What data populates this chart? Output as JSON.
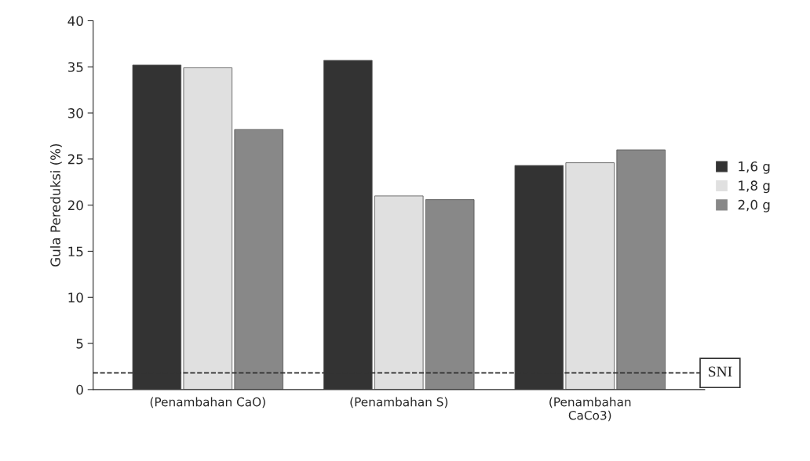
{
  "chart_data": {
    "type": "bar",
    "ylabel": "Gula Pereduksi (%)",
    "categories": [
      "(Penambahan CaO)",
      "(Penambahan S)",
      "(Penambahan\nCaCo3)"
    ],
    "series": [
      {
        "name": "1,6 g",
        "color": "#333333",
        "values": [
          35.2,
          35.7,
          24.3
        ]
      },
      {
        "name": "1,8 g",
        "color": "#e0e0e0",
        "values": [
          34.9,
          21.0,
          24.6
        ]
      },
      {
        "name": "2,0 g",
        "color": "#888888",
        "values": [
          28.2,
          20.6,
          26.0
        ]
      }
    ],
    "ylim": [
      0,
      40
    ],
    "yticks": [
      0,
      5,
      10,
      15,
      20,
      25,
      30,
      35,
      40
    ],
    "ref_lines": [
      {
        "axis": "y",
        "value": 1.8,
        "label": "SNI",
        "color": "#333333",
        "line_style": "dashed"
      }
    ],
    "grid": false,
    "legend": "right"
  }
}
